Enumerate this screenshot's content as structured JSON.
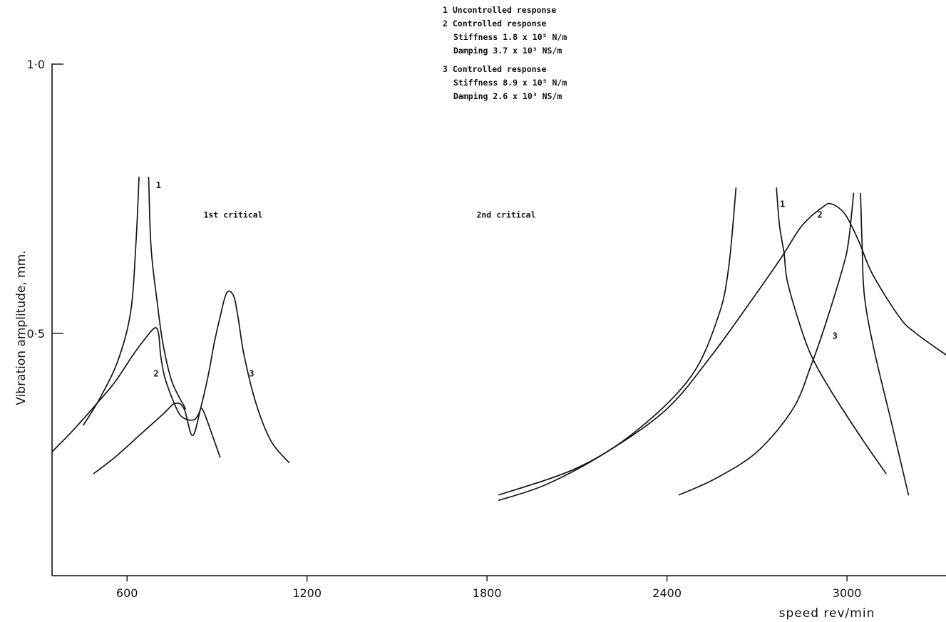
{
  "chart_data": {
    "type": "line",
    "title": "",
    "xlabel": "speed  rev/min",
    "ylabel": "Vibration  amplitude, mm.",
    "xlim": [
      350,
      3330
    ],
    "ylim": [
      0.05,
      1.0
    ],
    "x_ticks": [
      600,
      1200,
      1800,
      2400,
      3000
    ],
    "x_tick_labels": [
      "600",
      "1200",
      "1800",
      "2400",
      "3000"
    ],
    "y_ticks": [
      0.5,
      1.0
    ],
    "y_tick_labels": [
      "0·5",
      "1·0"
    ],
    "grid": false,
    "legend_position": "top-center",
    "legend": [
      "1 Uncontrolled response",
      "2 Controlled response",
      "Stiffness 1.8 x 10⁵ N/m",
      "Damping 3.7 x 10³ NS/m",
      "3 Controlled response",
      "Stiffness 8.9 x 10⁵ N/m",
      "Damping 2.6 x 10³ NS/m"
    ],
    "annotations": [
      "1st critical",
      "2nd critical"
    ],
    "series": [
      {
        "name": "1",
        "segments": [
          [
            [
              455,
              0.33
            ],
            [
              510,
              0.38
            ],
            [
              570,
              0.45
            ],
            [
              612,
              0.54
            ],
            [
              630,
              0.67
            ],
            [
              640,
              0.79
            ]
          ],
          [
            [
              672,
              0.79
            ],
            [
              680,
              0.66
            ],
            [
              700,
              0.56
            ],
            [
              720,
              0.48
            ],
            [
              750,
              0.41
            ],
            [
              795,
              0.36
            ]
          ],
          [
            [
              2630,
              0.77
            ],
            [
              2605,
              0.62
            ],
            [
              2570,
              0.53
            ],
            [
              2480,
              0.42
            ],
            [
              2300,
              0.32
            ],
            [
              2100,
              0.25
            ],
            [
              1840,
              0.2
            ]
          ],
          [
            [
              2765,
              0.77
            ],
            [
              2775,
              0.7
            ],
            [
              2790,
              0.65
            ],
            [
              2800,
              0.6
            ],
            [
              2835,
              0.53
            ],
            [
              2880,
              0.46
            ],
            [
              2950,
              0.39
            ],
            [
              3055,
              0.3
            ],
            [
              3130,
              0.24
            ]
          ]
        ]
      },
      {
        "name": "2",
        "segments": [
          [
            [
              350,
              0.28
            ],
            [
              420,
              0.32
            ],
            [
              500,
              0.37
            ],
            [
              560,
              0.41
            ],
            [
              620,
              0.46
            ],
            [
              660,
              0.49
            ],
            [
              692,
              0.51
            ],
            [
              705,
              0.5
            ],
            [
              712,
              0.46
            ],
            [
              725,
              0.42
            ],
            [
              750,
              0.38
            ],
            [
              775,
              0.35
            ],
            [
              800,
              0.34
            ],
            [
              825,
              0.34
            ],
            [
              838,
              0.35
            ],
            [
              850,
              0.36
            ],
            [
              872,
              0.33
            ],
            [
              910,
              0.27
            ]
          ],
          [
            [
              1840,
              0.19
            ],
            [
              2000,
              0.22
            ],
            [
              2200,
              0.28
            ],
            [
              2400,
              0.36
            ],
            [
              2550,
              0.46
            ],
            [
              2680,
              0.56
            ],
            [
              2780,
              0.64
            ],
            [
              2850,
              0.7
            ],
            [
              2920,
              0.735
            ],
            [
              2950,
              0.74
            ],
            [
              2995,
              0.72
            ],
            [
              3040,
              0.67
            ],
            [
              3085,
              0.61
            ],
            [
              3175,
              0.53
            ],
            [
              3230,
              0.5
            ],
            [
              3330,
              0.46
            ]
          ]
        ]
      },
      {
        "name": "3",
        "segments": [
          [
            [
              490,
              0.24
            ],
            [
              560,
              0.27
            ],
            [
              640,
              0.31
            ],
            [
              720,
              0.35
            ],
            [
              760,
              0.37
            ],
            [
              790,
              0.36
            ],
            [
              818,
              0.31
            ],
            [
              845,
              0.36
            ],
            [
              870,
              0.42
            ],
            [
              890,
              0.48
            ],
            [
              910,
              0.53
            ],
            [
              932,
              0.575
            ],
            [
              955,
              0.57
            ],
            [
              970,
              0.53
            ],
            [
              990,
              0.46
            ],
            [
              1030,
              0.37
            ],
            [
              1080,
              0.3
            ],
            [
              1140,
              0.26
            ]
          ],
          [
            [
              2440,
              0.2
            ],
            [
              2560,
              0.23
            ],
            [
              2700,
              0.28
            ],
            [
              2820,
              0.36
            ],
            [
              2880,
              0.44
            ],
            [
              2930,
              0.52
            ],
            [
              2985,
              0.62
            ],
            [
              3005,
              0.67
            ],
            [
              3022,
              0.76
            ]
          ],
          [
            [
              3045,
              0.76
            ],
            [
              3050,
              0.67
            ],
            [
              3058,
              0.57
            ],
            [
              3090,
              0.47
            ],
            [
              3150,
              0.33
            ],
            [
              3205,
              0.2
            ]
          ]
        ]
      }
    ],
    "curve_labels": [
      {
        "text": "1",
        "x": 705,
        "y": 0.77
      },
      {
        "text": "2",
        "x": 697,
        "y": 0.42
      },
      {
        "text": "3",
        "x": 1015,
        "y": 0.42
      },
      {
        "text": "1",
        "x": 2785,
        "y": 0.735
      },
      {
        "text": "2",
        "x": 2910,
        "y": 0.715
      },
      {
        "text": "3",
        "x": 2960,
        "y": 0.49
      }
    ],
    "annotation_positions": [
      {
        "text": "1st critical",
        "x": 855,
        "y": 0.715
      },
      {
        "text": "2nd critical",
        "x": 1765,
        "y": 0.715
      }
    ]
  }
}
